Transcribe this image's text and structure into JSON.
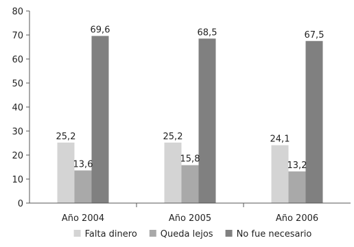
{
  "chart_data": {
    "type": "bar",
    "categories": [
      "Año 2004",
      "Año 2005",
      "Año 2006"
    ],
    "series": [
      {
        "name": "Falta dinero",
        "values": [
          25.2,
          25.2,
          24.1
        ],
        "labels": [
          "25,2",
          "25,2",
          "24,1"
        ],
        "color": "#d4d4d4"
      },
      {
        "name": "Queda lejos",
        "values": [
          13.6,
          15.8,
          13.2
        ],
        "labels": [
          "13,6",
          "15,8",
          "13,2"
        ],
        "color": "#a9a9a9"
      },
      {
        "name": "No fue necesario",
        "values": [
          69.6,
          68.5,
          67.5
        ],
        "labels": [
          "69,6",
          "68,5",
          "67,5"
        ],
        "color": "#808080"
      }
    ],
    "ylim": [
      0,
      80
    ],
    "yticks": [
      0,
      10,
      20,
      30,
      40,
      50,
      60,
      70,
      80
    ],
    "grid": false,
    "legend_position": "bottom"
  }
}
